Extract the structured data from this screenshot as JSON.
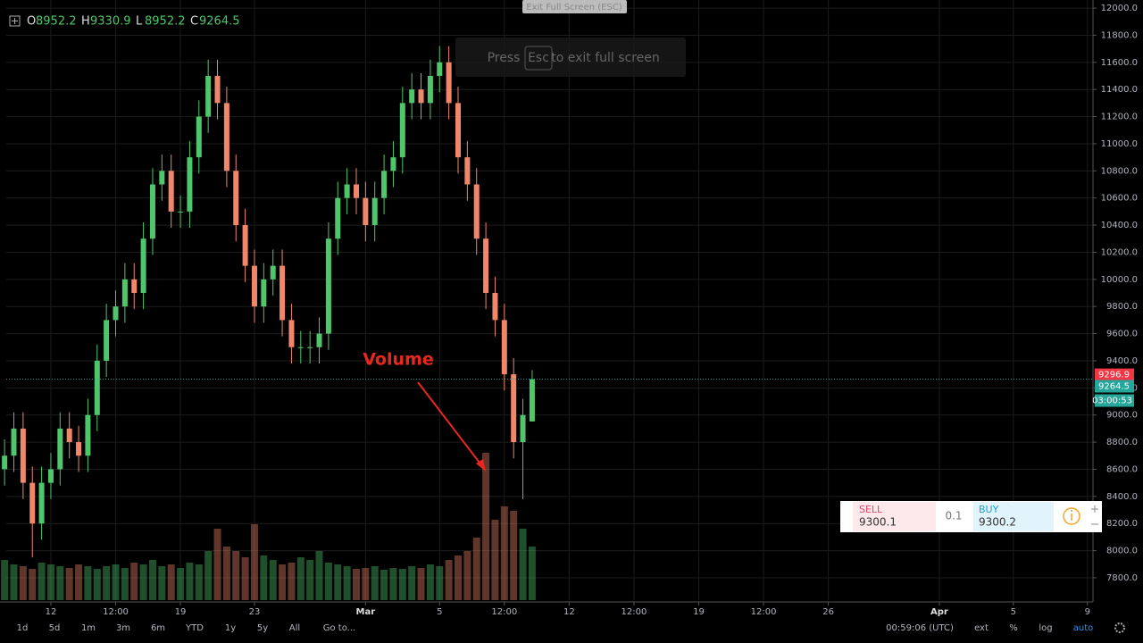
{
  "chart_data": {
    "type": "candlestick",
    "x": [
      8.5,
      9,
      9.5,
      10,
      10.5,
      11,
      11.5,
      12,
      12.5,
      13,
      13.5,
      14,
      14.5,
      15,
      15.5,
      16,
      16.5,
      17,
      17.5,
      18,
      18.5,
      19,
      19.5,
      20,
      20.5,
      21,
      21.5,
      22,
      22.5,
      23,
      23.5,
      24,
      24.5,
      25,
      25.5,
      26,
      26.5,
      27,
      27.5,
      28,
      28.5,
      29,
      29.5,
      30,
      30.5,
      31,
      31.5,
      32,
      32.5,
      33,
      33.5,
      34,
      34.5,
      35,
      35.5,
      36,
      36.5,
      37
    ],
    "open": [
      8600,
      8700,
      8900,
      8500,
      8200,
      8500,
      8600,
      8900,
      8800,
      8700,
      9000,
      9400,
      9700,
      9800,
      10000,
      9900,
      10300,
      10700,
      10800,
      10500,
      10500,
      10900,
      11200,
      11500,
      11300,
      10800,
      10400,
      10100,
      9800,
      10000,
      10100,
      9700,
      9500,
      9500,
      9500,
      9600,
      10300,
      10600,
      10700,
      10600,
      10400,
      10600,
      10800,
      10900,
      11300,
      11400,
      11300,
      11500,
      11600,
      11300,
      10900,
      10700,
      10300,
      9900,
      9700,
      9300,
      8800,
      8952.2
    ],
    "high": [
      8820,
      9020,
      9020,
      8620,
      8620,
      8720,
      9020,
      9020,
      8920,
      9120,
      9520,
      9820,
      9920,
      10120,
      10120,
      10420,
      10820,
      10920,
      10920,
      10620,
      11020,
      11320,
      11620,
      11620,
      11420,
      10920,
      10520,
      10220,
      10120,
      10220,
      10220,
      9820,
      9620,
      9620,
      9720,
      10420,
      10720,
      10820,
      10820,
      10720,
      10720,
      10920,
      11020,
      11420,
      11520,
      11520,
      11620,
      11720,
      11720,
      11420,
      11020,
      10820,
      10420,
      10020,
      9820,
      9420,
      9120,
      9330.9
    ],
    "low": [
      8480,
      8580,
      8380,
      7950,
      8080,
      8380,
      8480,
      8680,
      8580,
      8580,
      8880,
      9280,
      9580,
      9680,
      9780,
      9780,
      10180,
      10580,
      10380,
      10380,
      10380,
      10780,
      11080,
      11180,
      10680,
      10280,
      9980,
      9680,
      9680,
      9880,
      9580,
      9380,
      9380,
      9380,
      9380,
      9480,
      10180,
      10480,
      10480,
      10280,
      10280,
      10480,
      10680,
      10780,
      11180,
      11180,
      11180,
      11380,
      11180,
      10780,
      10580,
      10180,
      9780,
      9580,
      9180,
      8680,
      8380,
      8952.2
    ],
    "close": [
      8700,
      8900,
      8500,
      8200,
      8500,
      8600,
      8900,
      8800,
      8700,
      9000,
      9400,
      9700,
      9800,
      10000,
      9900,
      10300,
      10700,
      10800,
      10500,
      10500,
      10900,
      11200,
      11500,
      11300,
      10800,
      10400,
      10100,
      9800,
      10000,
      10100,
      9700,
      9500,
      9500,
      9500,
      9600,
      10300,
      10600,
      10700,
      10600,
      10400,
      10600,
      10800,
      10900,
      11300,
      11400,
      11300,
      11500,
      11600,
      11300,
      10900,
      10700,
      10300,
      9900,
      9700,
      9300,
      8800,
      9000,
      9264.5
    ],
    "volume": [
      45,
      40,
      38,
      35,
      42,
      40,
      38,
      36,
      40,
      38,
      35,
      38,
      40,
      36,
      42,
      40,
      45,
      38,
      40,
      36,
      42,
      40,
      55,
      80,
      60,
      55,
      48,
      85,
      50,
      45,
      40,
      42,
      48,
      45,
      55,
      42,
      40,
      38,
      35,
      36,
      38,
      34,
      36,
      35,
      38,
      36,
      40,
      38,
      45,
      50,
      55,
      70,
      165,
      90,
      105,
      100,
      80,
      60
    ],
    "vlim": [
      0,
      170
    ],
    "up_color": "#4fc66b",
    "down_color": "#f0876a",
    "ylim": [
      7635,
      12007
    ],
    "yticks": [
      {
        "value": 7800,
        "label": "7800.0"
      },
      {
        "value": 8000,
        "label": "8000.0"
      },
      {
        "value": 8200,
        "label": "8200.0"
      },
      {
        "value": 8400,
        "label": "8400.0"
      },
      {
        "value": 8600,
        "label": "8600.0"
      },
      {
        "value": 8800,
        "label": "8800.0"
      },
      {
        "value": 9000,
        "label": "9000.0"
      },
      {
        "value": 9200,
        "label": "9200.0"
      },
      {
        "value": 9400,
        "label": "9400.0"
      },
      {
        "value": 9600,
        "label": "9600.0"
      },
      {
        "value": 9800,
        "label": "9800.0"
      },
      {
        "value": 10000,
        "label": "10000.0"
      },
      {
        "value": 10200,
        "label": "10200.0"
      },
      {
        "value": 10400,
        "label": "10400.0"
      },
      {
        "value": 10600,
        "label": "10600.0"
      },
      {
        "value": 10800,
        "label": "10800.0"
      },
      {
        "value": 11000,
        "label": "11000.0"
      },
      {
        "value": 11200,
        "label": "11200.0"
      },
      {
        "value": 11400,
        "label": "11400.0"
      },
      {
        "value": 11600,
        "label": "11600.0"
      },
      {
        "value": 11800,
        "label": "11800.0"
      },
      {
        "value": 12000,
        "label": "12000.0"
      }
    ],
    "xlim": [
      8.59,
      67.3
    ],
    "xticks": [
      {
        "value": 11,
        "label": "12"
      },
      {
        "value": 14.5,
        "label": "12:00"
      },
      {
        "value": 18,
        "label": "19"
      },
      {
        "value": 22,
        "label": "23"
      },
      {
        "value": 28,
        "label": "Mar"
      },
      {
        "value": 32,
        "label": "5"
      },
      {
        "value": 35.5,
        "label": "12:00"
      },
      {
        "value": 39,
        "label": "12"
      },
      {
        "value": 42.5,
        "label": "12:00"
      },
      {
        "value": 46,
        "label": "19"
      },
      {
        "value": 49.5,
        "label": "12:00"
      },
      {
        "value": 53,
        "label": "26"
      },
      {
        "value": 59,
        "label": "Apr"
      },
      {
        "value": 63,
        "label": "5"
      },
      {
        "value": 67,
        "label": "9"
      }
    ],
    "grid": true,
    "annotation": "Volume"
  },
  "header": {
    "labels": [
      "O",
      "H",
      "L",
      "C"
    ],
    "values": [
      8952.2,
      9330.9,
      8952.2,
      9264.5
    ]
  },
  "price_labels": {
    "values": [
      9296.9,
      9264.5
    ],
    "countdown": "03:00:53"
  },
  "toolbar": {
    "ranges": [
      "1d",
      "5d",
      "1m",
      "3m",
      "6m",
      "YTD",
      "1y",
      "5y",
      "All",
      "Go to..."
    ],
    "time": "00:59:06 (UTC)",
    "options": [
      "ext",
      "%",
      "log",
      "auto"
    ]
  },
  "fullscreen": {
    "button": "Exit Full Screen (ESC)",
    "press": "Press",
    "key": "Esc",
    "rest": "to exit full screen"
  },
  "trade": {
    "sell": "SELL",
    "sell_price": 9300.1,
    "qty": 0.1,
    "buy": "BUY",
    "buy_price": 9300.2
  }
}
